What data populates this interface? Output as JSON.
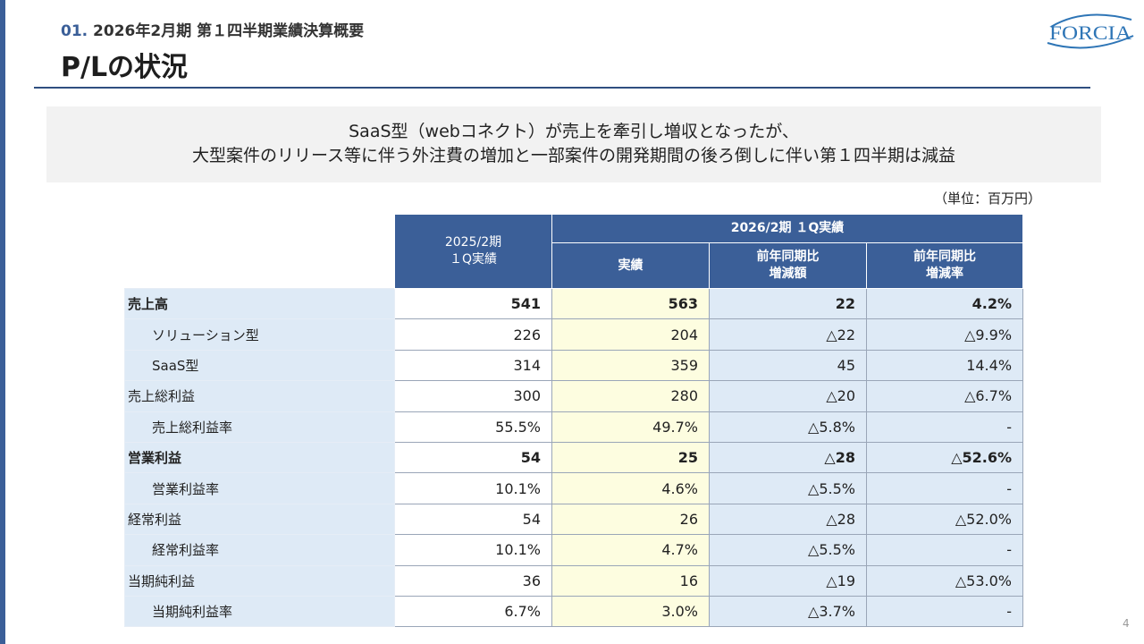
{
  "header": {
    "section_number": "01.",
    "section_title": "2026年2月期 第１四半期業績決算概要",
    "page_title": "P/Lの状況",
    "logo_text": "FORCIA"
  },
  "summary": {
    "line1": "SaaS型（webコネクト）が売上を牽引し増収となったが、",
    "line2": "大型案件のリリース等に伴う外注費の増加と一部案件の開発期間の後ろ倒しに伴い第１四半期は減益"
  },
  "unit_note": "（単位：百万円）",
  "table": {
    "prev_header_line1": "2025/2期",
    "prev_header_line2": "１Q実績",
    "current_header": "2026/2期 １Q実績",
    "col_actual": "実績",
    "col_diff_line1": "前年同期比",
    "col_diff_line2": "増減額",
    "col_rate_line1": "前年同期比",
    "col_rate_line2": "増減率",
    "rows": [
      {
        "label": "売上高",
        "prev": "541",
        "cur": "563",
        "diff": "22",
        "rate": "4.2%"
      },
      {
        "label": "ソリューション型",
        "prev": "226",
        "cur": "204",
        "diff": "△22",
        "rate": "△9.9%"
      },
      {
        "label": "SaaS型",
        "prev": "314",
        "cur": "359",
        "diff": "45",
        "rate": "14.4%"
      },
      {
        "label": "売上総利益",
        "prev": "300",
        "cur": "280",
        "diff": "△20",
        "rate": "△6.7%"
      },
      {
        "label": "売上総利益率",
        "prev": "55.5%",
        "cur": "49.7%",
        "diff": "△5.8%",
        "rate": "-"
      },
      {
        "label": "営業利益",
        "prev": "54",
        "cur": "25",
        "diff": "△28",
        "rate": "△52.6%"
      },
      {
        "label": "営業利益率",
        "prev": "10.1%",
        "cur": "4.6%",
        "diff": "△5.5%",
        "rate": "-"
      },
      {
        "label": "経常利益",
        "prev": "54",
        "cur": "26",
        "diff": "△28",
        "rate": "△52.0%"
      },
      {
        "label": "経常利益率",
        "prev": "10.1%",
        "cur": "4.7%",
        "diff": "△5.5%",
        "rate": "-"
      },
      {
        "label": "当期純利益",
        "prev": "36",
        "cur": "16",
        "diff": "△19",
        "rate": "△53.0%"
      },
      {
        "label": "当期純利益率",
        "prev": "6.7%",
        "cur": "3.0%",
        "diff": "△3.7%",
        "rate": "-"
      }
    ]
  },
  "page_number": "4",
  "colors": {
    "accent": "#3b5f98",
    "row_label_bg": "#deeaf6",
    "current_col_bg": "#fdfde0"
  }
}
